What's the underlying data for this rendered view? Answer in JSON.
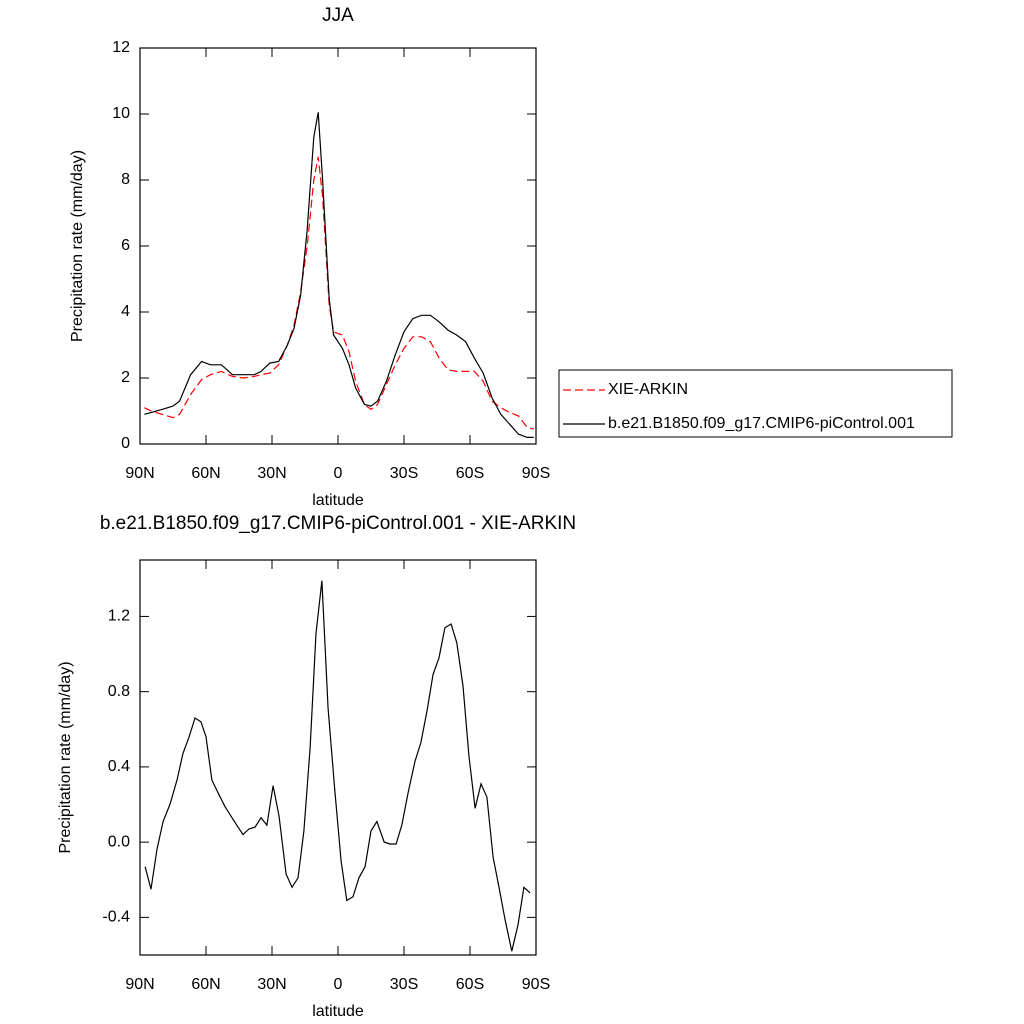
{
  "chart_data": [
    {
      "type": "line",
      "title": "JJA",
      "xlabel": "latitude",
      "ylabel": "Precipitation rate (mm/day)",
      "x": [
        88,
        85,
        80,
        75,
        72,
        67,
        62,
        58,
        53,
        48,
        43,
        38,
        35,
        31,
        27,
        23,
        20,
        17,
        14,
        11,
        9,
        7,
        4,
        2,
        -2,
        -5,
        -8,
        -12,
        -15,
        -18,
        -22,
        -26,
        -30,
        -34,
        -38,
        -42,
        -46,
        -50,
        -54,
        -58,
        -62,
        -66,
        -70,
        -74,
        -78,
        -82,
        -86,
        -89
      ],
      "series": [
        {
          "name": "XIE-ARKIN",
          "color": "#ff0000",
          "line_style": "dashed",
          "values": [
            1.1,
            1.0,
            0.9,
            0.8,
            0.9,
            1.5,
            1.95,
            2.1,
            2.2,
            2.05,
            2.0,
            2.05,
            2.1,
            2.15,
            2.4,
            3.0,
            3.6,
            4.6,
            6.0,
            8.0,
            8.7,
            7.5,
            4.2,
            3.4,
            3.3,
            2.8,
            1.9,
            1.2,
            1.05,
            1.2,
            1.8,
            2.4,
            2.9,
            3.25,
            3.25,
            3.1,
            2.6,
            2.25,
            2.2,
            2.2,
            2.2,
            1.9,
            1.3,
            1.1,
            0.95,
            0.85,
            0.5,
            0.45
          ]
        },
        {
          "name": "b.e21.B1850.f09_g17.CMIP6-piControl.001",
          "color": "#000000",
          "line_style": "solid",
          "values": [
            0.9,
            0.95,
            1.05,
            1.15,
            1.3,
            2.1,
            2.5,
            2.4,
            2.4,
            2.1,
            2.1,
            2.1,
            2.2,
            2.45,
            2.5,
            3.0,
            3.5,
            4.5,
            6.5,
            9.3,
            10.05,
            8.0,
            4.4,
            3.3,
            2.9,
            2.4,
            1.7,
            1.2,
            1.15,
            1.3,
            1.9,
            2.7,
            3.4,
            3.8,
            3.9,
            3.9,
            3.7,
            3.45,
            3.3,
            3.1,
            2.6,
            2.15,
            1.4,
            0.9,
            0.6,
            0.3,
            0.2,
            0.2
          ]
        }
      ],
      "xlim": [
        90,
        -90
      ],
      "xticks": [
        {
          "value": 90,
          "label": "90N"
        },
        {
          "value": 60,
          "label": "60N"
        },
        {
          "value": 30,
          "label": "30N"
        },
        0,
        {
          "value": -30,
          "label": "30S"
        },
        {
          "value": -60,
          "label": "60S"
        },
        {
          "value": -90,
          "label": "90S"
        }
      ],
      "ylim": [
        0,
        12
      ],
      "yticks": [
        0,
        2,
        4,
        6,
        8,
        10,
        12
      ],
      "legend": "right"
    },
    {
      "type": "line",
      "title": "b.e21.B1850.f09_g17.CMIP6-piControl.001 - XIE-ARKIN",
      "xlabel": "latitude",
      "ylabel": "Precipitation rate (mm/day)",
      "x": [
        87.7,
        85,
        82.3,
        79.5,
        76.4,
        73.2,
        70.5,
        67.7,
        65,
        62.3,
        60,
        57.3,
        54,
        51.4,
        48.2,
        46,
        43.2,
        40.5,
        37.7,
        35,
        32.3,
        29.5,
        26.8,
        23.6,
        20.9,
        18.2,
        15.5,
        12.7,
        10,
        7.3,
        4.5,
        1.4,
        -1.4,
        -4,
        -6.8,
        -9.5,
        -12.3,
        -15,
        -17.7,
        -21,
        -23.6,
        -26.4,
        -29,
        -31.8,
        -35,
        -37.7,
        -40.5,
        -43.2,
        -45.9,
        -48.6,
        -51.4,
        -54,
        -56.8,
        -59.5,
        -62.3,
        -65,
        -67.7,
        -70.5,
        -73.2,
        -75.9,
        -79,
        -81.8,
        -84.5,
        -87.3
      ],
      "series": [
        {
          "color": "#000000",
          "line_style": "solid",
          "values": [
            -0.13,
            -0.25,
            -0.04,
            0.11,
            0.2,
            0.33,
            0.47,
            0.56,
            0.66,
            0.64,
            0.56,
            0.33,
            0.25,
            0.19,
            0.13,
            0.09,
            0.04,
            0.07,
            0.08,
            0.13,
            0.09,
            0.3,
            0.14,
            -0.17,
            -0.24,
            -0.19,
            0.06,
            0.5,
            1.11,
            1.39,
            0.71,
            0.27,
            -0.1,
            -0.31,
            -0.29,
            -0.19,
            -0.13,
            0.06,
            0.11,
            0.0,
            -0.01,
            -0.01,
            0.09,
            0.26,
            0.43,
            0.53,
            0.7,
            0.89,
            0.98,
            1.14,
            1.16,
            1.06,
            0.83,
            0.46,
            0.18,
            0.31,
            0.24,
            -0.08,
            -0.24,
            -0.41,
            -0.58,
            -0.44,
            -0.24,
            -0.27
          ]
        }
      ],
      "xlim": [
        90,
        -90
      ],
      "xticks": [
        {
          "value": 90,
          "label": "90N"
        },
        {
          "value": 60,
          "label": "60N"
        },
        {
          "value": 30,
          "label": "30N"
        },
        0,
        {
          "value": -30,
          "label": "30S"
        },
        {
          "value": -60,
          "label": "60S"
        },
        {
          "value": -90,
          "label": "90S"
        }
      ],
      "ylim": [
        -0.6,
        1.5
      ],
      "yticks": [
        -0.4,
        {
          "value": 0,
          "label": "0.0"
        },
        0.4,
        0.8,
        1.2
      ]
    }
  ]
}
